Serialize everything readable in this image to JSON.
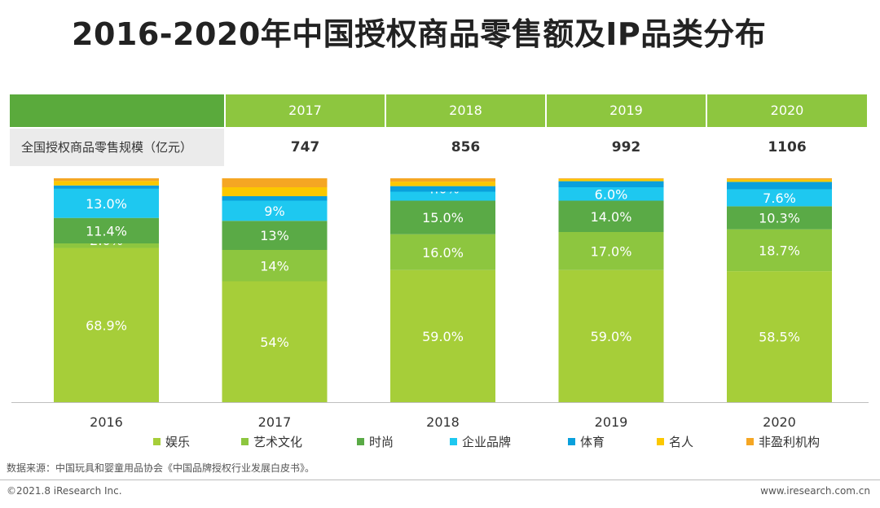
{
  "title": "2016-2020年中国授权商品零售额及IP品类分布",
  "table": {
    "row_label": "全国授权商品零售规模（亿元）",
    "years": [
      "2017",
      "2018",
      "2019",
      "2020"
    ],
    "values": [
      "747",
      "856",
      "992",
      "1106"
    ]
  },
  "colors": {
    "header_dark": "#5aaa3c",
    "header_light": "#8dc63f",
    "row_label_bg": "#ebebeb"
  },
  "chart_data": {
    "type": "bar",
    "stacked": true,
    "normalized": true,
    "categories": [
      "2016",
      "2017",
      "2018",
      "2019",
      "2020"
    ],
    "series": [
      {
        "name": "娱乐",
        "color": "#a6ce39",
        "values": [
          68.9,
          54,
          59.0,
          59.0,
          58.5
        ],
        "labels": [
          "68.9%",
          "54%",
          "59.0%",
          "59.0%",
          "58.5%"
        ]
      },
      {
        "name": "艺术文化",
        "color": "#8dc63f",
        "values": [
          2.0,
          14,
          16.0,
          17.0,
          18.7
        ],
        "labels": [
          "2.0%",
          "14%",
          "16.0%",
          "17.0%",
          "18.7%"
        ]
      },
      {
        "name": "时尚",
        "color": "#5aaa46",
        "values": [
          11.4,
          13,
          15.0,
          14.0,
          10.3
        ],
        "labels": [
          "11.4%",
          "13%",
          "15.0%",
          "14.0%",
          "10.3%"
        ]
      },
      {
        "name": "企业品牌",
        "color": "#1ec8f0",
        "values": [
          13.0,
          9,
          4.0,
          6.0,
          7.6
        ],
        "labels": [
          "13.0%",
          "9%",
          "4.0%",
          "6.0%",
          "7.6%"
        ]
      },
      {
        "name": "体育",
        "color": "#0aa0dc",
        "values": [
          1.5,
          2,
          2.5,
          2.7,
          3.3
        ],
        "labels": [
          "",
          "",
          "",
          "",
          ""
        ]
      },
      {
        "name": "名人",
        "color": "#fcc800",
        "values": [
          2.0,
          4,
          2.0,
          1.0,
          1.0
        ],
        "labels": [
          "",
          "",
          "",
          "",
          ""
        ]
      },
      {
        "name": "非盈利机构",
        "color": "#f5a623",
        "values": [
          1.2,
          4,
          1.5,
          0.3,
          0.6
        ],
        "labels": [
          "",
          "",
          "",
          "",
          ""
        ]
      }
    ],
    "ylim": [
      0,
      100
    ],
    "legend_position": "bottom"
  },
  "source": "数据来源：中国玩具和婴童用品协会《中国品牌授权行业发展白皮书》。",
  "footer": {
    "copyright": "©2021.8 iResearch Inc.",
    "website": "www.iresearch.com.cn"
  }
}
